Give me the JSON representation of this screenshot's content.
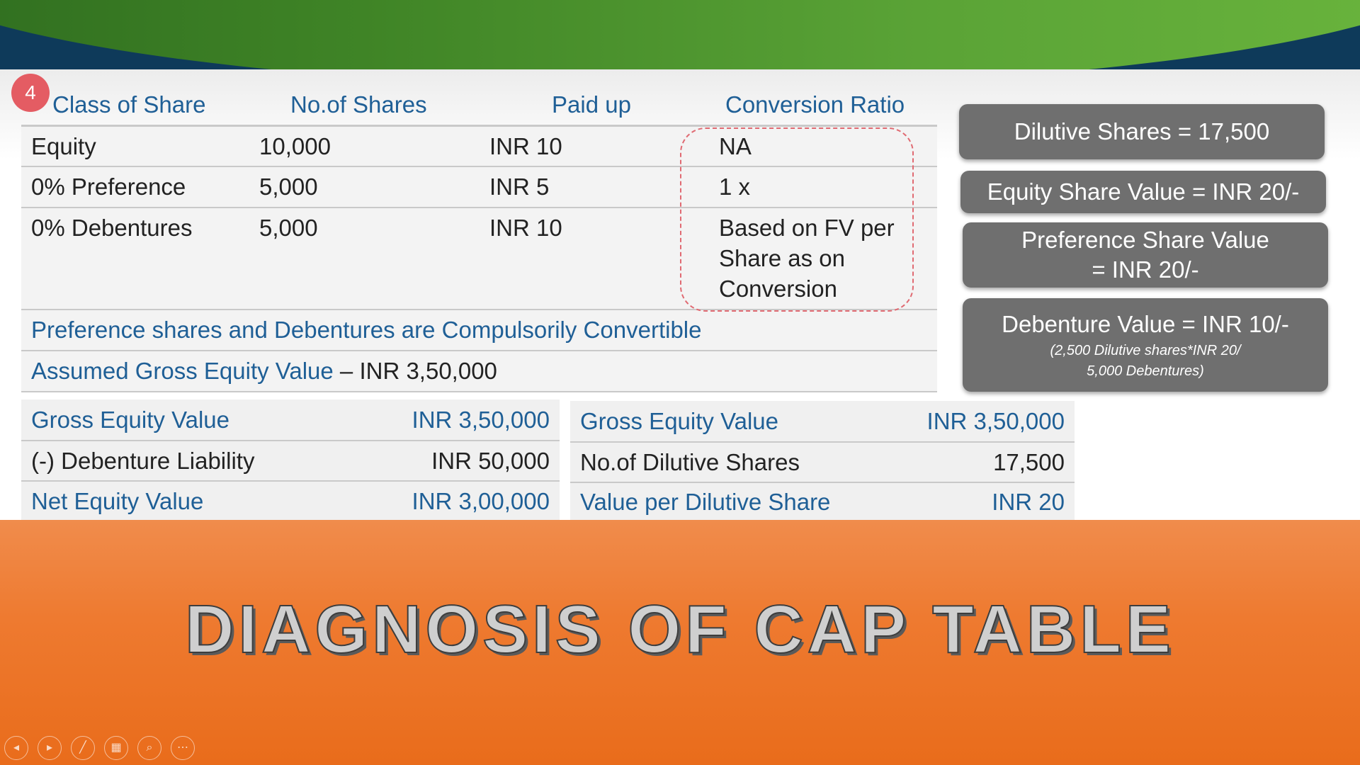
{
  "step_badge": "4",
  "table": {
    "headers": [
      "Class of Share",
      "No.of Shares",
      "Paid up",
      "Conversion Ratio"
    ],
    "rows": [
      {
        "class": "Equity",
        "shares": "10,000",
        "paid_up": "INR 10",
        "ratio_lines": [
          "NA"
        ]
      },
      {
        "class": "0% Preference",
        "shares": "5,000",
        "paid_up": "INR 5",
        "ratio_lines": [
          "1 x"
        ]
      },
      {
        "class": "0% Debentures",
        "shares": "5,000",
        "paid_up": "INR 10",
        "ratio_lines": [
          "Based on FV per",
          "Share as on",
          "Conversion"
        ]
      }
    ],
    "note_convertible": "Preference shares and Debentures are Compulsorily Convertible",
    "assumed_label": "Assumed Gross Equity Value",
    "assumed_value": "– INR 3,50,000"
  },
  "net_equity_panel": [
    {
      "label": "Gross Equity Value",
      "value": "INR 3,50,000"
    },
    {
      "label": "(-) Debenture Liability",
      "value": "INR 50,000"
    },
    {
      "label": "Net Equity Value",
      "value": "INR 3,00,000"
    }
  ],
  "dilutive_panel": [
    {
      "label": "Gross Equity Value",
      "value": "INR 3,50,000"
    },
    {
      "label": "No.of Dilutive Shares",
      "value": "17,500"
    },
    {
      "label": "Value per Dilutive Share",
      "value": "INR 20"
    }
  ],
  "summary_boxes": {
    "dilutive_shares": "Dilutive Shares = 17,500",
    "equity_value": "Equity Share Value = INR 20/-",
    "preference_line1": "Preference Share Value",
    "preference_line2": "= INR  20/-",
    "debenture_main": "Debenture Value = INR 10/-",
    "debenture_note1": "(2,500 Dilutive shares*INR 20/",
    "debenture_note2": "5,000 Debentures)"
  },
  "banner_title": "DIAGNOSIS OF CAP TABLE",
  "toolbar_icons": [
    "previous-icon",
    "next-icon",
    "pen-icon",
    "slides-grid-icon",
    "zoom-icon",
    "more-icon"
  ],
  "colors": {
    "header_blue": "#1f5f96",
    "green_band": "#3f8426",
    "orange_band": "#ee7a30",
    "summary_box_gray": "#6f6f6f",
    "badge_red": "#e45c63",
    "dashed_outline": "#e06a72"
  }
}
